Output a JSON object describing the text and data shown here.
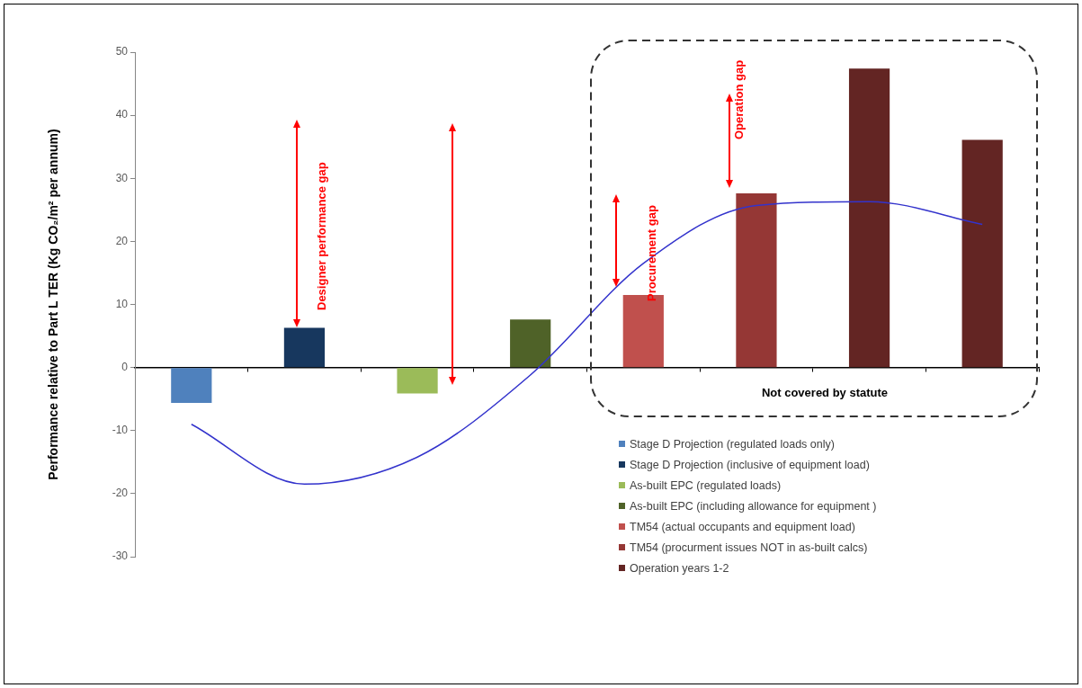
{
  "chart_data": {
    "type": "bar",
    "ylabel": "Performance relative to Part L TER (Kg CO₂/m² per annum)",
    "ylim": [
      -30,
      50
    ],
    "yticks": [
      -30,
      -20,
      -10,
      0,
      10,
      20,
      30,
      40,
      50
    ],
    "categories": [
      null,
      null,
      null,
      null,
      null,
      null,
      null,
      null
    ],
    "stacked": true,
    "legend": "bottom right",
    "series": [
      {
        "name": "Stage D Projection (regulated loads only)",
        "color": "#4f81bd",
        "values": [
          -5.6,
          null,
          null,
          null,
          null,
          null,
          null,
          null
        ]
      },
      {
        "name": "Stage D Projection (inclusive of equipment load)",
        "color": "#17375e",
        "values": [
          null,
          6.3,
          null,
          null,
          null,
          null,
          null,
          null
        ]
      },
      {
        "name": "As-built EPC (regulated loads)",
        "color": "#9bbb59",
        "values": [
          null,
          null,
          -4.1,
          null,
          null,
          null,
          null,
          null
        ]
      },
      {
        "name": "As-built EPC (including allowance for equipment )",
        "color": "#4f6228",
        "values": [
          null,
          null,
          null,
          7.6,
          null,
          null,
          null,
          null
        ]
      },
      {
        "name": "TM54 (actual occupants and equipment load)",
        "color": "#c0504d",
        "values": [
          null,
          null,
          null,
          null,
          11.5,
          null,
          null,
          null
        ]
      },
      {
        "name": "TM54 (procurment issues NOT in as-built calcs)",
        "color": "#953735",
        "values": [
          null,
          null,
          null,
          null,
          null,
          27.6,
          null,
          null
        ]
      },
      {
        "name": "Operation years 1-2",
        "color": "#632523",
        "values": [
          null,
          null,
          null,
          null,
          null,
          null,
          47.4,
          36.1
        ]
      },
      {
        "type": "line",
        "color": "#3333cc",
        "marker": "none",
        "values": [
          -9.0,
          -18.5,
          -14.2,
          -1.2,
          16.5,
          25.7,
          26.3,
          22.7
        ]
      }
    ],
    "annotations": [
      "Designer performance gap",
      "Procurement gap",
      "Operation gap",
      "Not covered by statute"
    ]
  }
}
